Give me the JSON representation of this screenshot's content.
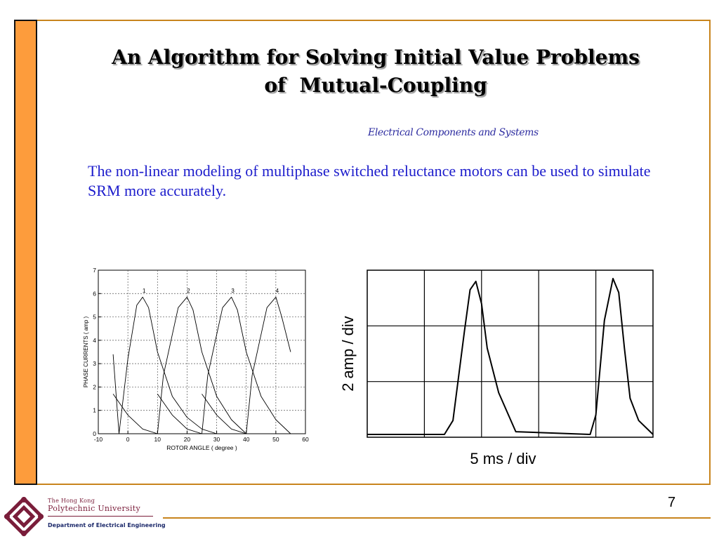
{
  "slide": {
    "title_line1": "An Algorithm for Solving Initial Value Problems",
    "title_line2": "of  Mutual-Coupling",
    "subtitle": "Electrical Components and Systems",
    "body": "The non-linear modeling of multiphase switched reluctance motors can be used to simulate SRM more accurately.",
    "page_number": "7"
  },
  "footer": {
    "university_line1": "The Hong Kong",
    "university_line2": "Polytechnic University",
    "department": "Department of Electrical Engineering"
  },
  "colors": {
    "accent_orange": "#fd9c3c",
    "frame_border": "#c8841d",
    "body_text": "#1c1ccc",
    "subtitle_text": "#2d2ca0",
    "logo": "#7a1d3a"
  },
  "chart_data": [
    {
      "type": "line",
      "xlabel": "ROTOR ANGLE ( degree )",
      "ylabel": "PHASE CURRENTS ( amp )",
      "xlim": [
        -10,
        60
      ],
      "ylim": [
        0,
        7
      ],
      "xticks": [
        -10,
        0,
        10,
        20,
        30,
        40,
        50,
        60
      ],
      "yticks": [
        0,
        1,
        2,
        3,
        4,
        5,
        6,
        7
      ],
      "grid": true,
      "series": [
        {
          "name": "1",
          "x": [
            -5,
            -3,
            0,
            3,
            5,
            7,
            10,
            15,
            20,
            25,
            30
          ],
          "y": [
            3.4,
            0.0,
            3.2,
            5.5,
            5.85,
            5.4,
            3.5,
            1.6,
            0.7,
            0.2,
            0.0
          ]
        },
        {
          "name": "2",
          "x": [
            -5,
            0,
            5,
            10,
            12,
            17,
            20,
            22,
            25,
            30,
            35,
            40
          ],
          "y": [
            1.7,
            0.8,
            0.2,
            0.0,
            2.5,
            5.4,
            5.85,
            5.3,
            3.5,
            1.6,
            0.6,
            0.0
          ]
        },
        {
          "name": "3",
          "x": [
            10,
            15,
            20,
            25,
            27,
            32,
            35,
            37,
            40,
            45,
            50,
            55
          ],
          "y": [
            1.7,
            0.8,
            0.2,
            0.0,
            2.5,
            5.4,
            5.85,
            5.3,
            3.5,
            1.6,
            0.6,
            0.0
          ]
        },
        {
          "name": "4",
          "x": [
            25,
            30,
            35,
            40,
            42,
            47,
            50,
            52,
            55
          ],
          "y": [
            1.7,
            0.8,
            0.2,
            0.0,
            2.5,
            5.4,
            5.85,
            5.0,
            3.5
          ]
        }
      ]
    },
    {
      "type": "line",
      "xlabel": "5 ms / div",
      "ylabel": "2 amp / div",
      "xlim": [
        0,
        5
      ],
      "ylim": [
        0,
        3
      ],
      "grid": true,
      "series": [
        {
          "x": [
            0,
            1.35,
            1.5,
            1.7,
            1.8,
            1.9,
            2.0,
            2.1,
            2.3,
            2.6,
            3.9,
            4.0,
            4.15,
            4.3,
            4.4,
            4.5,
            4.6,
            4.75,
            5.0
          ],
          "y": [
            0.05,
            0.05,
            0.3,
            1.9,
            2.65,
            2.8,
            2.4,
            1.6,
            0.8,
            0.1,
            0.05,
            0.4,
            2.1,
            2.85,
            2.6,
            1.6,
            0.7,
            0.3,
            0.05
          ]
        }
      ]
    }
  ]
}
